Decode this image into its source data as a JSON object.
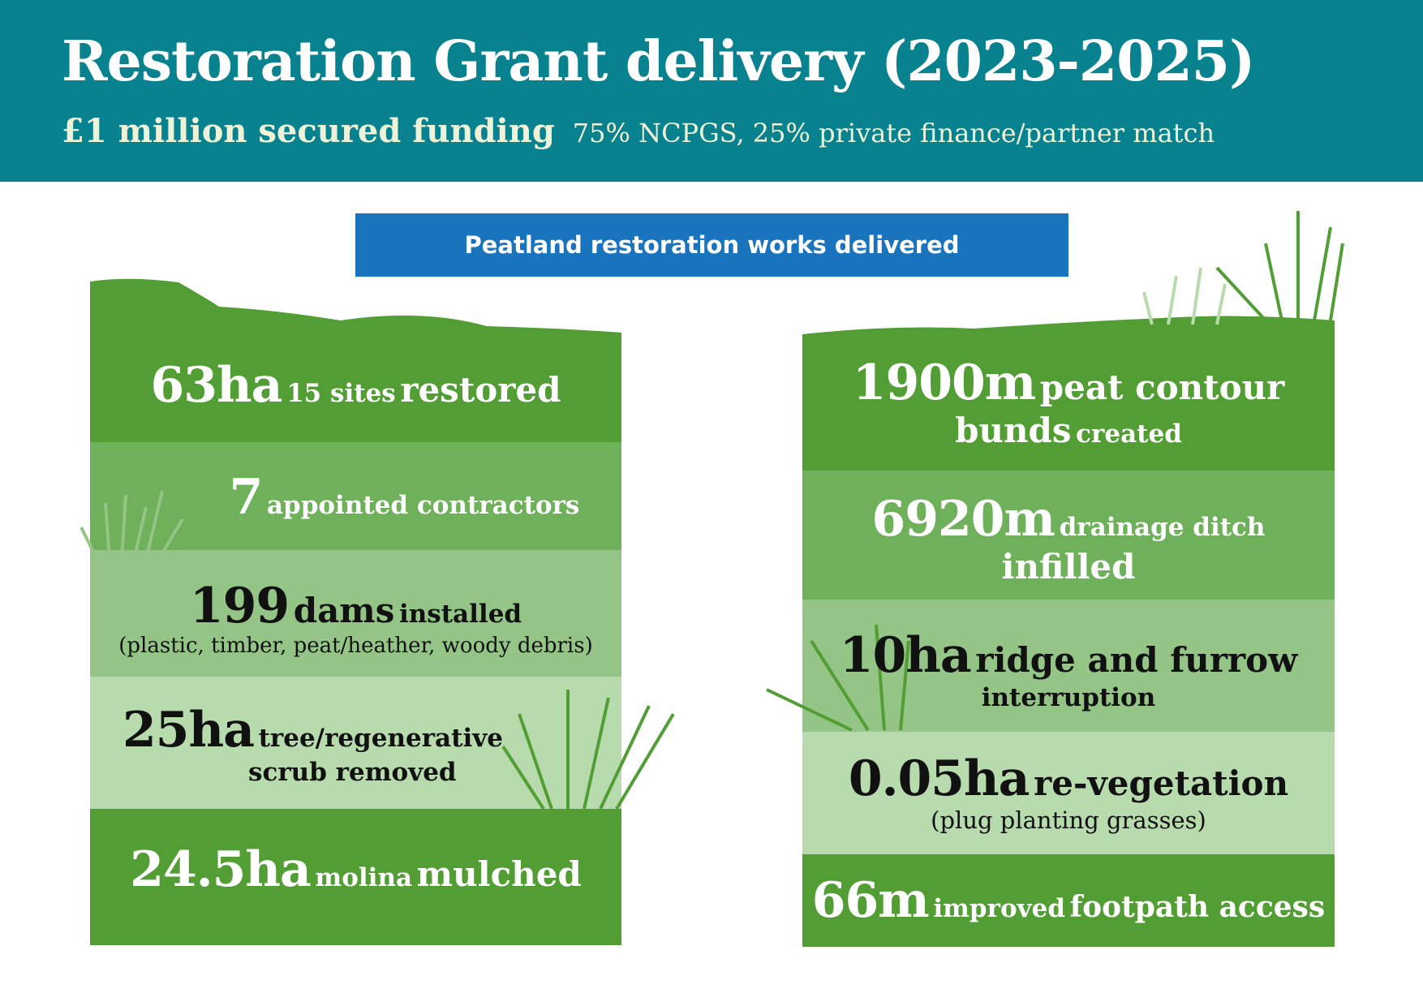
{
  "header": {
    "title": "Restoration Grant delivery (2023-2025)",
    "funding": "£1 million secured funding",
    "funding_split": "75% NCPGS, 25% private finance/partner match"
  },
  "banner": "Peatland restoration works delivered",
  "left": [
    [
      "63ha",
      "15 sites",
      "restored"
    ],
    [
      "7",
      "appointed contractors"
    ],
    [
      "199",
      "dams",
      "installed",
      "(plastic, timber, peat/heather, woody debris)"
    ],
    [
      "25ha",
      "tree/regenerative",
      "scrub removed"
    ],
    [
      "24.5ha",
      "molina",
      "mulched"
    ]
  ],
  "right": [
    [
      "1900m",
      "peat contour",
      "bunds",
      "created"
    ],
    [
      "6920m",
      "drainage ditch",
      "infilled"
    ],
    [
      "10ha",
      "ridge and furrow",
      "interruption"
    ],
    [
      "0.05ha",
      "re-vegetation",
      "(plug planting grasses)"
    ],
    [
      "66m",
      "improved",
      "footpath access"
    ]
  ]
}
